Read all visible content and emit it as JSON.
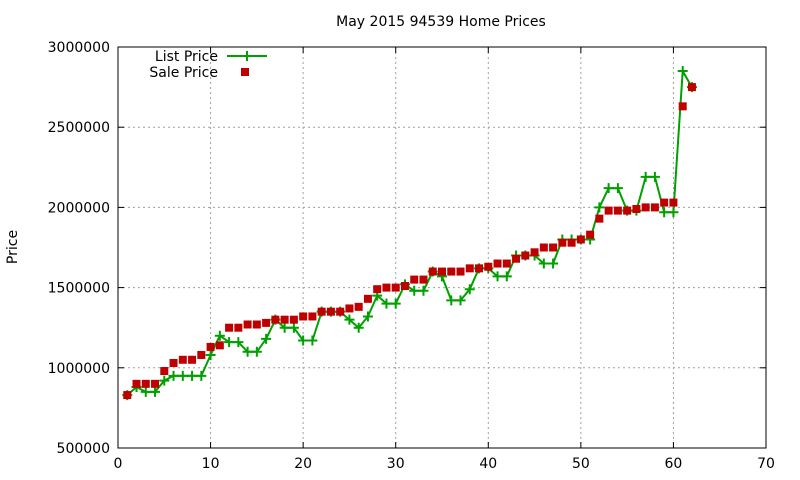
{
  "chart_data": {
    "type": "line",
    "title": "May 2015 94539 Home Prices",
    "xlabel": "",
    "ylabel": "Price",
    "xlim": [
      0,
      70
    ],
    "ylim": [
      500000,
      3000000
    ],
    "x_ticks": [
      0,
      10,
      20,
      30,
      40,
      50,
      60,
      70
    ],
    "y_ticks": [
      500000,
      1000000,
      1500000,
      2000000,
      2500000,
      3000000
    ],
    "grid": true,
    "legend_position": "top-left",
    "colors": {
      "list": "#00a000",
      "sale": "#c00000"
    },
    "series": [
      {
        "name": "List Price",
        "style": "line-plus",
        "x": [
          1,
          2,
          3,
          4,
          5,
          6,
          7,
          8,
          9,
          10,
          11,
          12,
          13,
          14,
          15,
          16,
          17,
          18,
          19,
          20,
          21,
          22,
          23,
          24,
          25,
          26,
          27,
          28,
          29,
          30,
          31,
          32,
          33,
          34,
          35,
          36,
          37,
          38,
          39,
          40,
          41,
          42,
          43,
          44,
          45,
          46,
          47,
          48,
          49,
          50,
          51,
          52,
          53,
          54,
          55,
          56,
          57,
          58,
          59,
          60,
          61,
          62
        ],
        "y": [
          830000,
          880000,
          850000,
          850000,
          920000,
          950000,
          950000,
          950000,
          950000,
          1080000,
          1200000,
          1160000,
          1160000,
          1100000,
          1100000,
          1180000,
          1300000,
          1250000,
          1250000,
          1170000,
          1170000,
          1350000,
          1350000,
          1350000,
          1300000,
          1250000,
          1320000,
          1450000,
          1400000,
          1400000,
          1520000,
          1480000,
          1480000,
          1600000,
          1570000,
          1420000,
          1420000,
          1490000,
          1620000,
          1620000,
          1570000,
          1570000,
          1700000,
          1700000,
          1700000,
          1650000,
          1650000,
          1800000,
          1800000,
          1800000,
          1800000,
          2000000,
          2120000,
          2120000,
          1980000,
          1980000,
          2190000,
          2190000,
          1970000,
          1970000,
          2850000,
          2750000
        ]
      },
      {
        "name": "Sale Price",
        "style": "square-points",
        "x": [
          1,
          2,
          3,
          4,
          5,
          6,
          7,
          8,
          9,
          10,
          11,
          12,
          13,
          14,
          15,
          16,
          17,
          18,
          19,
          20,
          21,
          22,
          23,
          24,
          25,
          26,
          27,
          28,
          29,
          30,
          31,
          32,
          33,
          34,
          35,
          36,
          37,
          38,
          39,
          40,
          41,
          42,
          43,
          44,
          45,
          46,
          47,
          48,
          49,
          50,
          51,
          52,
          53,
          54,
          55,
          56,
          57,
          58,
          59,
          60,
          61,
          62
        ],
        "y": [
          830000,
          900000,
          900000,
          900000,
          980000,
          1030000,
          1050000,
          1050000,
          1080000,
          1130000,
          1140000,
          1250000,
          1250000,
          1270000,
          1270000,
          1280000,
          1300000,
          1300000,
          1300000,
          1320000,
          1320000,
          1350000,
          1350000,
          1350000,
          1370000,
          1380000,
          1430000,
          1490000,
          1500000,
          1500000,
          1510000,
          1550000,
          1550000,
          1600000,
          1600000,
          1600000,
          1600000,
          1620000,
          1620000,
          1630000,
          1650000,
          1650000,
          1680000,
          1700000,
          1720000,
          1750000,
          1750000,
          1780000,
          1780000,
          1800000,
          1830000,
          1930000,
          1980000,
          1980000,
          1980000,
          1990000,
          2000000,
          2000000,
          2030000,
          2030000,
          2630000,
          2750000
        ]
      }
    ]
  }
}
